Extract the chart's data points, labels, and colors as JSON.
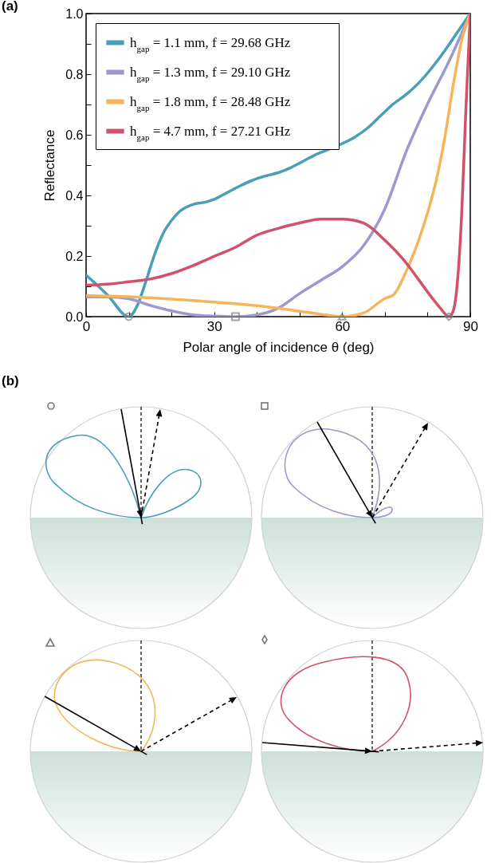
{
  "chart_data": {
    "type": "line",
    "xlabel": "Polar angle of incidence θ (deg)",
    "ylabel": "Reflectance",
    "xlim": [
      0,
      90
    ],
    "ylim": [
      0,
      1
    ],
    "xticks": [
      0,
      {
        "value": 10,
        "label": null
      },
      {
        "value": 20,
        "label": null
      },
      30,
      {
        "value": 40,
        "label": null
      },
      {
        "value": 50,
        "label": null
      },
      60,
      {
        "value": 70,
        "label": null
      },
      {
        "value": 80,
        "label": null
      },
      90
    ],
    "yticks": [
      {
        "value": 0,
        "label": "0.0"
      },
      {
        "value": 0.1,
        "label": null
      },
      {
        "value": 0.2,
        "label": "0.2"
      },
      {
        "value": 0.3,
        "label": null
      },
      {
        "value": 0.4,
        "label": "0.4"
      },
      {
        "value": 0.5,
        "label": null
      },
      {
        "value": 0.6,
        "label": "0.6"
      },
      {
        "value": 0.7,
        "label": null
      },
      {
        "value": 0.8,
        "label": "0.8"
      },
      {
        "value": 0.9,
        "label": null
      },
      {
        "value": 1,
        "label": "1.0"
      }
    ],
    "grid": false,
    "legend": "top left",
    "line_style": "solid",
    "annotations": [
      "(a)",
      "(b)"
    ],
    "series": [
      {
        "name": "h$_{gap}$ = 1.1 mm, f = 29.68 GHz",
        "color": "#4a9eb5",
        "x": [
          0,
          5,
          10,
          12,
          14,
          16,
          18,
          20,
          22,
          25,
          28,
          30,
          33,
          36,
          39,
          42,
          45,
          48,
          51,
          54,
          57,
          60,
          63,
          66,
          69,
          72,
          75,
          78,
          81,
          84,
          87,
          90
        ],
        "values": [
          0.137,
          0.072,
          0,
          0.037,
          0.116,
          0.203,
          0.273,
          0.317,
          0.348,
          0.37,
          0.378,
          0.387,
          0.409,
          0.431,
          0.45,
          0.464,
          0.475,
          0.492,
          0.514,
          0.536,
          0.553,
          0.571,
          0.593,
          0.623,
          0.663,
          0.702,
          0.733,
          0.772,
          0.821,
          0.877,
          0.939,
          1
        ]
      },
      {
        "name": "h$_{gap}$ = 1.3 mm, f = 29.10 GHz",
        "color": "#9b99d0",
        "x": [
          0,
          5,
          10,
          15,
          20,
          25,
          30,
          35,
          40,
          45,
          50,
          55,
          60,
          65,
          70,
          75,
          80,
          85,
          90
        ],
        "values": [
          0.065,
          0.065,
          0.059,
          0.037,
          0.019,
          0.006,
          0.002,
          0,
          0.006,
          0.028,
          0.076,
          0.12,
          0.165,
          0.234,
          0.356,
          0.545,
          0.702,
          0.842,
          1
        ]
      },
      {
        "name": "h$_{gap}$ = 1.8 mm, f = 28.48 GHz",
        "color": "#f5b55a",
        "x": [
          0,
          10,
          20,
          30,
          40,
          50,
          55,
          60,
          65,
          70,
          72,
          75,
          78,
          80,
          82,
          84,
          86,
          88,
          90
        ],
        "values": [
          0.07,
          0.066,
          0.058,
          0.048,
          0.036,
          0.018,
          0.008,
          0,
          0.012,
          0.06,
          0.072,
          0.15,
          0.256,
          0.343,
          0.448,
          0.588,
          0.763,
          0.912,
          1
        ]
      },
      {
        "name": "h$_{gap}$ = 4.7 mm, f = 27.21 GHz",
        "color": "#d2506a",
        "x": [
          0,
          5,
          10,
          15,
          20,
          25,
          30,
          35,
          40,
          45,
          50,
          55,
          60,
          65,
          70,
          75,
          78,
          81,
          83,
          85,
          86,
          87,
          88,
          89,
          90
        ],
        "values": [
          0.104,
          0.107,
          0.115,
          0.124,
          0.142,
          0.168,
          0.199,
          0.229,
          0.269,
          0.291,
          0.309,
          0.322,
          0.322,
          0.309,
          0.252,
          0.177,
          0.12,
          0.063,
          0.028,
          0,
          0.019,
          0.116,
          0.343,
          0.694,
          1
        ]
      },
      {
        "type": "scatter",
        "color": "#808080",
        "marker": "circle",
        "x": [
          10
        ],
        "values": [
          0
        ]
      },
      {
        "type": "scatter",
        "color": "#808080",
        "marker": "square",
        "x": [
          35
        ],
        "values": [
          0
        ]
      },
      {
        "type": "scatter",
        "color": "#808080",
        "marker": "triangle",
        "x": [
          60
        ],
        "values": [
          0
        ]
      },
      {
        "type": "scatter",
        "color": "#808080",
        "marker": "diamond",
        "x": [
          85
        ],
        "values": [
          0
        ]
      }
    ]
  }
}
